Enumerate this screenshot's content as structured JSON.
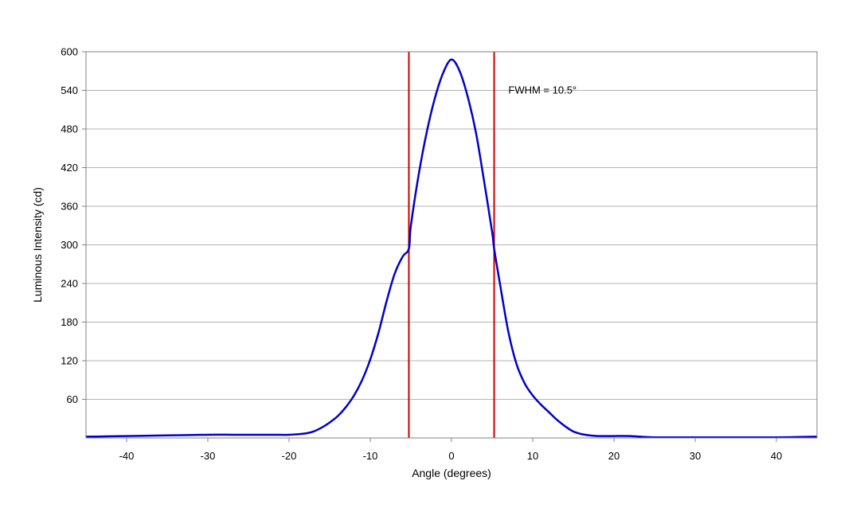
{
  "chart_data": {
    "type": "line",
    "title": "",
    "xlabel": "Angle (degrees)",
    "ylabel": "Luminous Intensity (cd)",
    "xlim": [
      -45,
      45
    ],
    "ylim": [
      0,
      600
    ],
    "x_ticks": [
      -40,
      -30,
      -20,
      -10,
      0,
      10,
      20,
      30,
      40
    ],
    "y_ticks": [
      60,
      120,
      180,
      240,
      300,
      360,
      420,
      480,
      540,
      600
    ],
    "grid": "horizontal",
    "legend": "none",
    "series": [
      {
        "color": "#0000cc",
        "x": [
          -45,
          -40,
          -35,
          -30,
          -27,
          -25,
          -22,
          -20,
          -18,
          -17,
          -16,
          -15,
          -14,
          -13,
          -12,
          -11,
          -10,
          -9,
          -8,
          -7,
          -6,
          -5.25,
          -5,
          -4,
          -3,
          -2,
          -1,
          0,
          1,
          2,
          3,
          4,
          5,
          5.25,
          6,
          7,
          8,
          9,
          10,
          11,
          12,
          13,
          14,
          15,
          16,
          17,
          18,
          19,
          20,
          22,
          25,
          30,
          35,
          40,
          45
        ],
        "y": [
          2,
          3,
          4,
          5,
          5,
          5,
          5,
          5,
          7,
          10,
          16,
          24,
          34,
          48,
          66,
          90,
          122,
          163,
          212,
          255,
          282,
          294,
          330,
          412,
          478,
          530,
          568,
          588,
          570,
          530,
          475,
          400,
          320,
          294,
          237,
          165,
          115,
          85,
          66,
          52,
          40,
          28,
          18,
          10,
          6,
          4,
          3,
          3,
          3,
          3,
          1,
          1,
          1,
          1,
          2
        ]
      }
    ],
    "annotations": {
      "vlines": [
        {
          "x": -5.25,
          "color": "#cc0000"
        },
        {
          "x": 5.25,
          "color": "#cc0000"
        }
      ],
      "label": {
        "text": "FWHM = 10.5°",
        "x": 7,
        "y": 540
      }
    }
  }
}
